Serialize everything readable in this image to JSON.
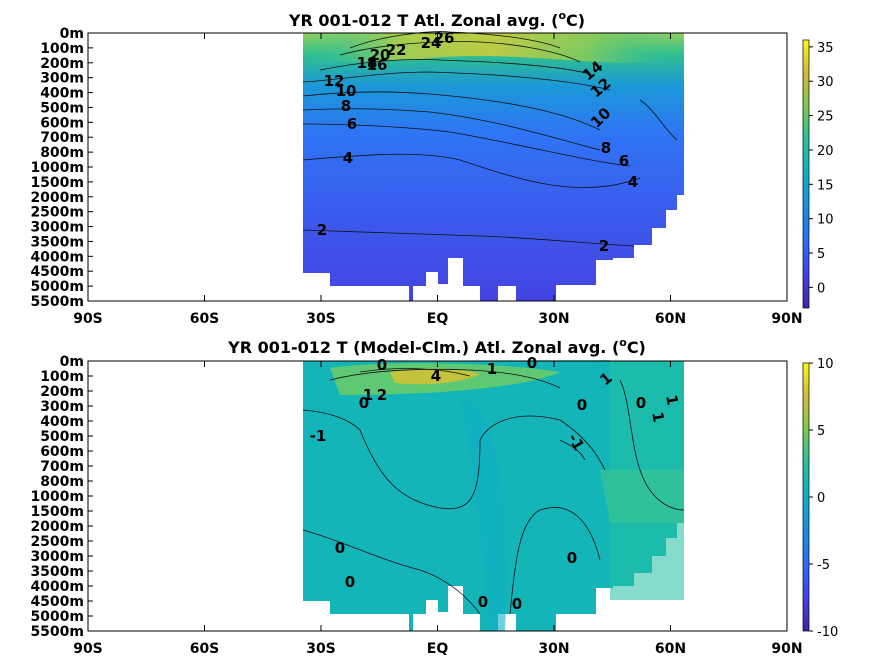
{
  "chart_data": [
    {
      "type": "heatmap",
      "title_prefix": "YR 001-012 T Atl. Zonal avg. (",
      "title_sup": "o",
      "title_suffix": "C)",
      "y_ticks": [
        "0m",
        "100m",
        "200m",
        "300m",
        "400m",
        "500m",
        "600m",
        "700m",
        "800m",
        "1000m",
        "1500m",
        "2000m",
        "2500m",
        "3000m",
        "3500m",
        "4000m",
        "4500m",
        "5000m",
        "5500m"
      ],
      "x_ticks": [
        "90S",
        "60S",
        "30S",
        "EQ",
        "30N",
        "60N",
        "90N"
      ],
      "xlim": [
        -90,
        90
      ],
      "data_lat_range": [
        -34,
        63
      ],
      "colorbar": {
        "ticks": [
          "0",
          "5",
          "10",
          "15",
          "20",
          "25",
          "30",
          "35"
        ],
        "range": [
          -3,
          36
        ]
      },
      "contour_labels": [
        "26",
        "24",
        "22",
        "20",
        "18",
        "16",
        "14",
        "12",
        "12",
        "10",
        "10",
        "8",
        "8",
        "6",
        "6",
        "4",
        "4",
        "2",
        "2"
      ]
    },
    {
      "type": "heatmap",
      "title_prefix": "YR 001-012 T (Model-Clm.) Atl. Zonal avg. (",
      "title_sup": "o",
      "title_suffix": "C)",
      "y_ticks": [
        "0m",
        "100m",
        "200m",
        "300m",
        "400m",
        "500m",
        "600m",
        "700m",
        "800m",
        "1000m",
        "1500m",
        "2000m",
        "2500m",
        "3000m",
        "3500m",
        "4000m",
        "4500m",
        "5000m",
        "5500m"
      ],
      "x_ticks": [
        "90S",
        "60S",
        "30S",
        "EQ",
        "30N",
        "60N",
        "90N"
      ],
      "xlim": [
        -90,
        90
      ],
      "data_lat_range": [
        -34,
        63
      ],
      "colorbar": {
        "ticks": [
          "-10",
          "-5",
          "0",
          "5",
          "10"
        ],
        "range": [
          -10,
          10
        ]
      },
      "contour_labels": [
        "0",
        "0",
        "2",
        "4",
        "1",
        "0",
        "1",
        "0",
        "0",
        "1",
        "-1",
        "1",
        "1",
        "-1",
        "0",
        "0",
        "0",
        "0",
        "0"
      ]
    }
  ]
}
